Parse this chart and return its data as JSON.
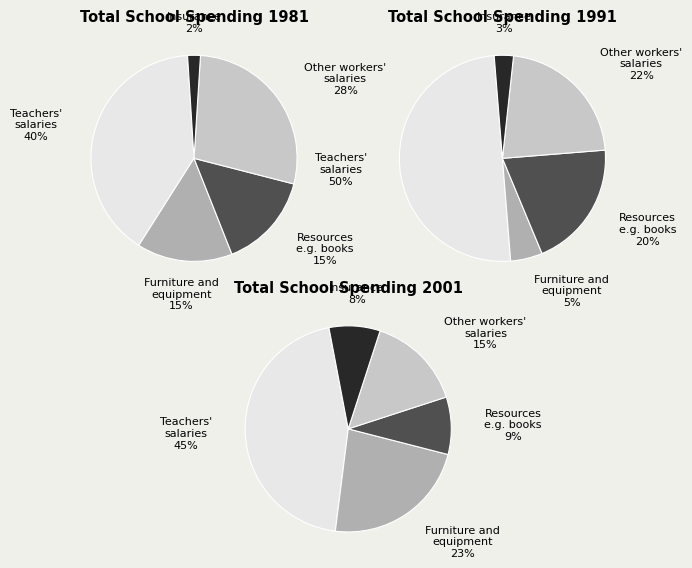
{
  "charts": [
    {
      "title": "Total School Spending 1981",
      "slices": [
        {
          "label": "Teachers'\nsalaries\n40%",
          "value": 40,
          "color": "#e8e8e8",
          "label_side": "right"
        },
        {
          "label": "Furniture and\nequipment\n15%",
          "value": 15,
          "color": "#b0b0b0",
          "label_side": "bottom"
        },
        {
          "label": "Resources\ne.g. books\n15%",
          "value": 15,
          "color": "#505050",
          "label_side": "left"
        },
        {
          "label": "Other workers'\nsalaries\n28%",
          "value": 28,
          "color": "#c8c8c8",
          "label_side": "left"
        },
        {
          "label": "Insurance\n2%",
          "value": 2,
          "color": "#282828",
          "label_side": "top"
        }
      ],
      "startangle": 93.6
    },
    {
      "title": "Total School Spending 1991",
      "slices": [
        {
          "label": "Teachers'\nsalaries\n50%",
          "value": 50,
          "color": "#e8e8e8",
          "label_side": "right"
        },
        {
          "label": "Furniture and\nequipment\n5%",
          "value": 5,
          "color": "#b0b0b0",
          "label_side": "bottom"
        },
        {
          "label": "Resources\ne.g. books\n20%",
          "value": 20,
          "color": "#505050",
          "label_side": "left"
        },
        {
          "label": "Other workers'\nsalaries\n22%",
          "value": 22,
          "color": "#c8c8c8",
          "label_side": "left"
        },
        {
          "label": "Insurance\n3%",
          "value": 3,
          "color": "#282828",
          "label_side": "top"
        }
      ],
      "startangle": 94.6
    },
    {
      "title": "Total School Spending 2001",
      "slices": [
        {
          "label": "Teachers'\nsalaries\n45%",
          "value": 45,
          "color": "#e8e8e8",
          "label_side": "right"
        },
        {
          "label": "Furniture and\nequipment\n23%",
          "value": 23,
          "color": "#b0b0b0",
          "label_side": "bottom"
        },
        {
          "label": "Resources\ne.g. books\n9%",
          "value": 9,
          "color": "#505050",
          "label_side": "left"
        },
        {
          "label": "Other workers'\nsalaries\n15%",
          "value": 15,
          "color": "#c8c8c8",
          "label_side": "left"
        },
        {
          "label": "Insurance\n8%",
          "value": 8,
          "color": "#282828",
          "label_side": "top"
        }
      ],
      "startangle": 100.8
    }
  ],
  "label_fontsize": 8,
  "title_fontsize": 10.5,
  "bg_color": "#f0f0eb"
}
